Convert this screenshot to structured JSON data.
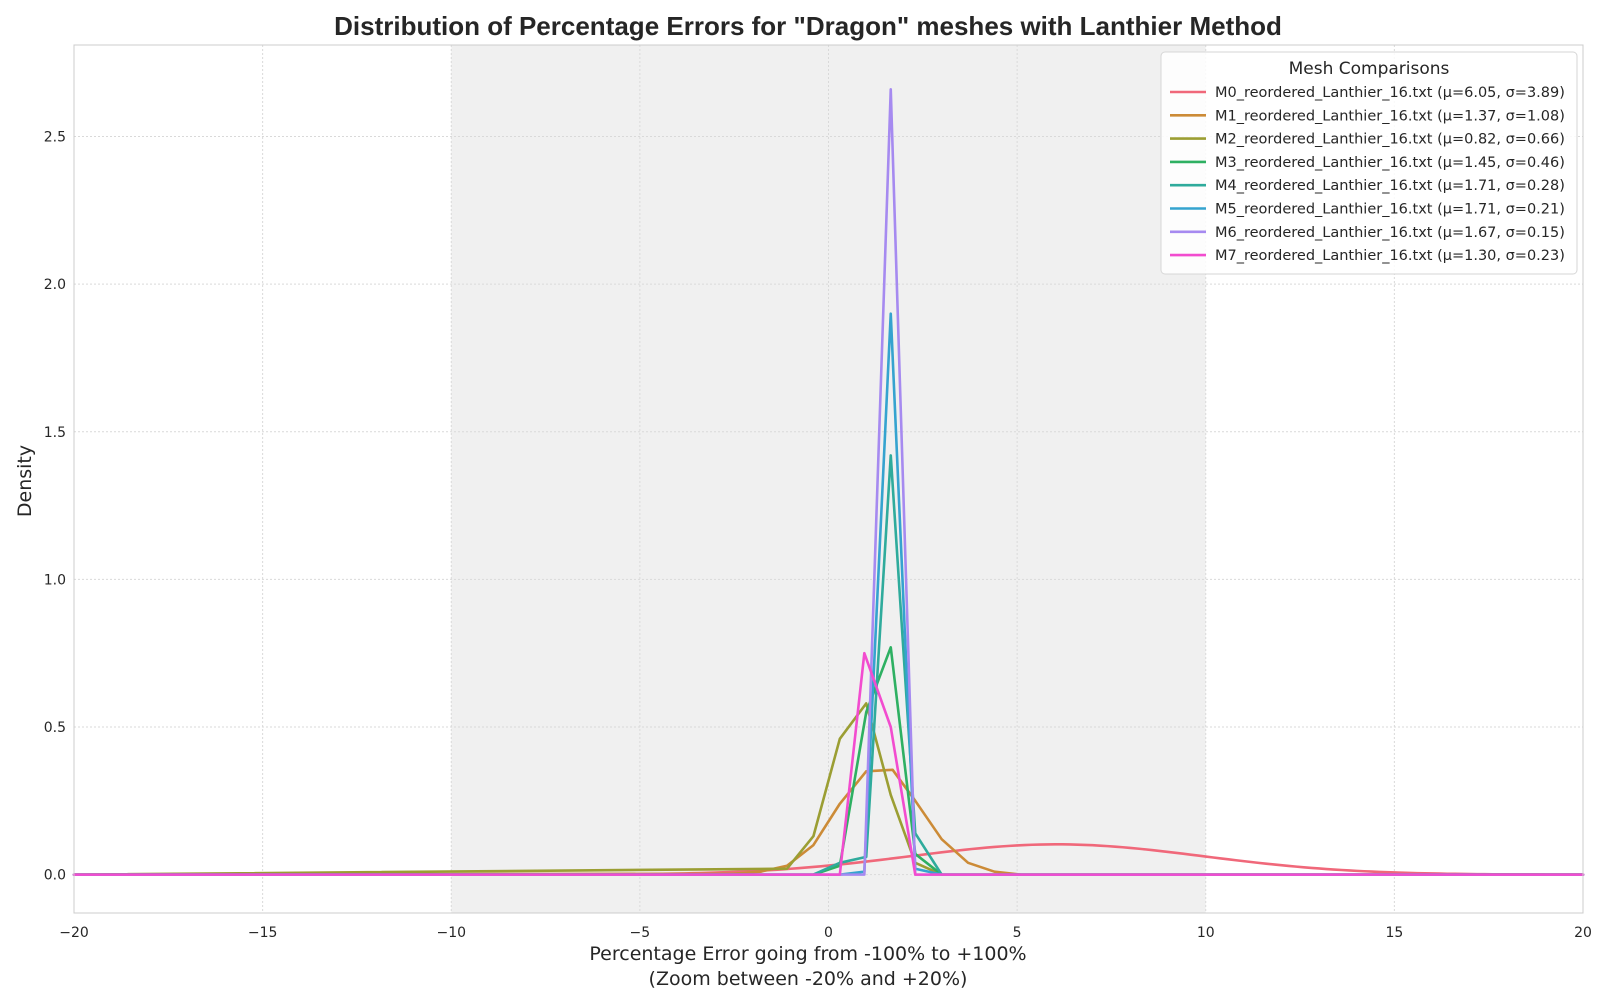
{
  "chart_data": {
    "type": "line",
    "title": "Distribution of Percentage Errors for \"Dragon\" meshes with Lanthier Method",
    "xlabel_line1": "Percentage Error going from -100% to +100%",
    "xlabel_line2": "(Zoom between -20% and +20%)",
    "ylabel": "Density",
    "xlim": [
      -20,
      20
    ],
    "ylim": [
      -0.13,
      2.81
    ],
    "xticks": [
      -20,
      -15,
      -10,
      -5,
      0,
      5,
      10,
      15,
      20
    ],
    "xtick_labels": [
      "−20",
      "−15",
      "−10",
      "−5",
      "0",
      "5",
      "10",
      "15",
      "20"
    ],
    "yticks": [
      0.0,
      0.5,
      1.0,
      1.5,
      2.0,
      2.5
    ],
    "ytick_labels": [
      "0.0",
      "0.5",
      "1.0",
      "1.5",
      "2.0",
      "2.5"
    ],
    "shaded_region": [
      -10,
      10
    ],
    "grid": true,
    "legend": {
      "title": "Mesh Comparisons",
      "placement": "top-right"
    },
    "series": [
      {
        "name": "M0_reordered_Lanthier_16.txt (μ=6.05, σ=3.89)",
        "color": "#f0687a",
        "mu": 6.05,
        "sigma": 3.89,
        "curve": "gaussian"
      },
      {
        "name": "M1_reordered_Lanthier_16.txt (μ=1.37, σ=1.08)",
        "color": "#cc8b37",
        "x": [
          -20,
          -2.5,
          -1.8,
          -1.1,
          -0.4,
          0.3,
          1.0,
          1.7,
          2.3,
          3.0,
          3.7,
          4.4,
          5.1,
          20
        ],
        "y": [
          0,
          0.003,
          0.01,
          0.03,
          0.1,
          0.24,
          0.35,
          0.355,
          0.25,
          0.12,
          0.04,
          0.01,
          0,
          0
        ]
      },
      {
        "name": "M2_reordered_Lanthier_16.txt (μ=0.82, σ=0.66)",
        "color": "#9b9e33",
        "x": [
          -20,
          -1.1,
          -0.4,
          0.3,
          1.0,
          1.65,
          2.3,
          3.0,
          20
        ],
        "y": [
          0,
          0.02,
          0.13,
          0.46,
          0.58,
          0.27,
          0.04,
          0.0,
          0
        ]
      },
      {
        "name": "M3_reordered_Lanthier_16.txt (μ=1.45, σ=0.46)",
        "color": "#2eb062",
        "x": [
          -20,
          -0.4,
          0.3,
          1.0,
          1.65,
          2.3,
          3.0,
          20
        ],
        "y": [
          0,
          0.0,
          0.03,
          0.55,
          0.77,
          0.07,
          0.0,
          0
        ]
      },
      {
        "name": "M4_reordered_Lanthier_16.txt (μ=1.71, σ=0.28)",
        "color": "#2fab9c",
        "x": [
          -20,
          -0.4,
          0.3,
          1.0,
          1.65,
          2.3,
          3.0,
          20
        ],
        "y": [
          0,
          0.0,
          0.04,
          0.06,
          1.42,
          0.14,
          0.0,
          0
        ]
      },
      {
        "name": "M5_reordered_Lanthier_16.txt (μ=1.71, σ=0.21)",
        "color": "#35a3cf",
        "x": [
          -20,
          0.3,
          0.95,
          1.65,
          2.3,
          3.0,
          20
        ],
        "y": [
          0,
          0.0,
          0.01,
          1.9,
          0.02,
          0.0,
          0
        ]
      },
      {
        "name": "M6_reordered_Lanthier_16.txt (μ=1.67, σ=0.15)",
        "color": "#a68af0",
        "x": [
          -20,
          0.3,
          0.95,
          1.65,
          2.3,
          3.0,
          20
        ],
        "y": [
          0,
          0.0,
          0.0,
          2.66,
          0.0,
          0.0,
          0
        ]
      },
      {
        "name": "M7_reordered_Lanthier_16.txt (μ=1.30, σ=0.23)",
        "color": "#f24ccf",
        "x": [
          -20,
          0.3,
          0.95,
          1.65,
          2.3,
          3.0,
          20
        ],
        "y": [
          0,
          0.0,
          0.75,
          0.5,
          0.0,
          0.0,
          0
        ]
      }
    ]
  }
}
